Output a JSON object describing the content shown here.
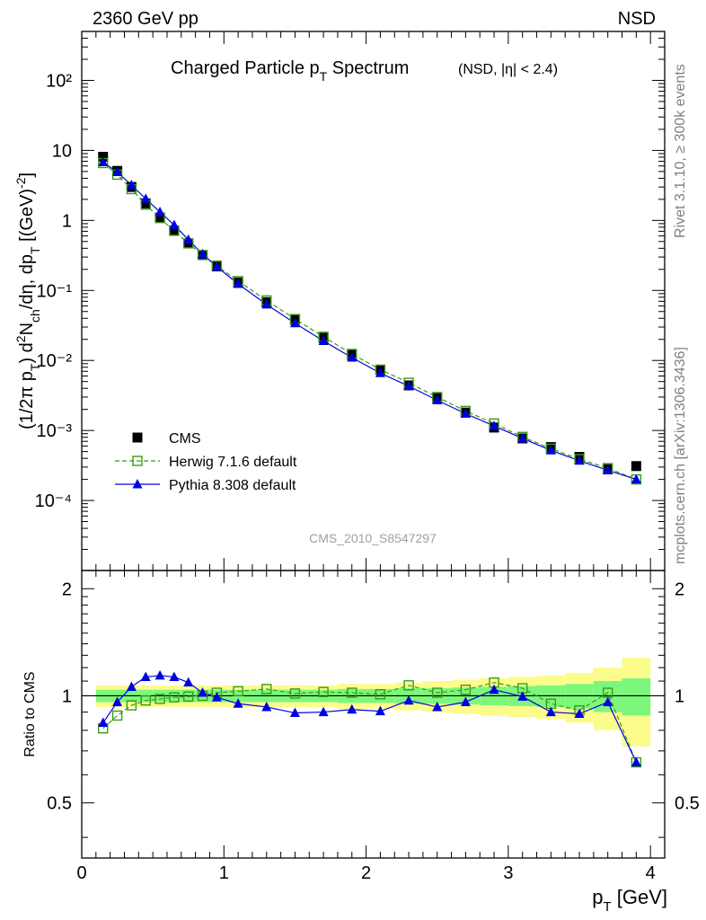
{
  "header": {
    "energy_label": "2360 GeV pp",
    "process_label": "NSD"
  },
  "side_labels": {
    "rivet": "Rivet 3.1.10, ≥ 300k events",
    "source": "mcplots.cern.ch [arXiv:1306.3436]"
  },
  "watermark": "CMS_2010_S8547297",
  "colors": {
    "data": "#000000",
    "herwig": "#3a9a1a",
    "pythia": "#0000e0",
    "band_inner": "#7cf77c",
    "band_outer": "#fcfc8c"
  },
  "chart_data": [
    {
      "type": "scatter",
      "title_main": "Charged Particle p",
      "title_sub": "T",
      "title_main2": " Spectrum",
      "title_note": "(NSD, |η| < 2.4)",
      "yscale": "log",
      "xlim": [
        0,
        4.1
      ],
      "ylim": [
        1e-05,
        500
      ],
      "ylabel": "(1/2π p_T) d²N_ch/dη, dp_T [(GeV)⁻²]",
      "x": [
        0.15,
        0.25,
        0.35,
        0.45,
        0.55,
        0.65,
        0.75,
        0.85,
        0.95,
        1.1,
        1.3,
        1.5,
        1.7,
        1.9,
        2.1,
        2.3,
        2.5,
        2.7,
        2.9,
        3.1,
        3.3,
        3.5,
        3.7,
        3.9
      ],
      "series": [
        {
          "name": "CMS",
          "marker": "filled-square",
          "values": [
            8.1,
            5.1,
            3.0,
            1.75,
            1.1,
            0.72,
            0.47,
            0.32,
            0.22,
            0.13,
            0.068,
            0.038,
            0.021,
            0.012,
            0.0073,
            0.0044,
            0.0029,
            0.0018,
            0.0011,
            0.00077,
            0.00058,
            0.00042,
            0.00028,
            0.00031
          ]
        },
        {
          "name": "Herwig 7.1.6 default",
          "marker": "open-square",
          "values": [
            6.6,
            4.5,
            2.8,
            1.68,
            1.08,
            0.71,
            0.47,
            0.32,
            0.226,
            0.136,
            0.072,
            0.039,
            0.0218,
            0.0124,
            0.0074,
            0.0048,
            0.003,
            0.0019,
            0.00126,
            0.00081,
            0.00055,
            0.00039,
            0.00029,
            0.0002
          ]
        },
        {
          "name": "Pythia 8.308 default",
          "marker": "filled-triangle",
          "values": [
            6.8,
            4.9,
            3.2,
            2.03,
            1.32,
            0.86,
            0.53,
            0.33,
            0.218,
            0.124,
            0.063,
            0.034,
            0.019,
            0.011,
            0.0066,
            0.0043,
            0.0027,
            0.00174,
            0.00116,
            0.00077,
            0.00052,
            0.00037,
            0.00027,
            0.0002
          ]
        }
      ],
      "legend": [
        "CMS",
        "Herwig 7.1.6 default",
        "Pythia 8.308 default"
      ],
      "legend_placement": "lower-left",
      "y_ticks": [
        "10⁻⁴",
        "10⁻³",
        "10⁻²",
        "10⁻¹",
        "1",
        "10",
        "10²"
      ]
    },
    {
      "type": "line",
      "ylabel": "Ratio to CMS",
      "xlabel": "p_T [GeV]",
      "xlim": [
        0,
        4.1
      ],
      "ylim": [
        0.35,
        2.25
      ],
      "x_ticks": [
        "0",
        "1",
        "2",
        "3",
        "4"
      ],
      "y_ticks": [
        "0.5",
        "1",
        "2"
      ],
      "bins": [
        [
          0.1,
          0.2
        ],
        [
          0.2,
          0.3
        ],
        [
          0.3,
          0.4
        ],
        [
          0.4,
          0.5
        ],
        [
          0.5,
          0.6
        ],
        [
          0.6,
          0.7
        ],
        [
          0.7,
          0.8
        ],
        [
          0.8,
          0.9
        ],
        [
          0.9,
          1.0
        ],
        [
          1.0,
          1.2
        ],
        [
          1.2,
          1.4
        ],
        [
          1.4,
          1.6
        ],
        [
          1.6,
          1.8
        ],
        [
          1.8,
          2.0
        ],
        [
          2.0,
          2.2
        ],
        [
          2.2,
          2.4
        ],
        [
          2.4,
          2.6
        ],
        [
          2.6,
          2.8
        ],
        [
          2.8,
          3.0
        ],
        [
          3.0,
          3.2
        ],
        [
          3.2,
          3.4
        ],
        [
          3.4,
          3.6
        ],
        [
          3.6,
          3.8
        ],
        [
          3.8,
          4.0
        ]
      ],
      "band_inner": [
        0.04,
        0.04,
        0.04,
        0.04,
        0.04,
        0.04,
        0.04,
        0.04,
        0.04,
        0.04,
        0.04,
        0.04,
        0.04,
        0.045,
        0.045,
        0.05,
        0.05,
        0.055,
        0.06,
        0.065,
        0.07,
        0.08,
        0.1,
        0.12
      ],
      "band_outer": [
        0.07,
        0.07,
        0.07,
        0.07,
        0.07,
        0.07,
        0.07,
        0.07,
        0.07,
        0.07,
        0.07,
        0.07,
        0.07,
        0.08,
        0.08,
        0.09,
        0.1,
        0.11,
        0.12,
        0.13,
        0.14,
        0.16,
        0.2,
        0.28
      ],
      "x": [
        0.15,
        0.25,
        0.35,
        0.45,
        0.55,
        0.65,
        0.75,
        0.85,
        0.95,
        1.1,
        1.3,
        1.5,
        1.7,
        1.9,
        2.1,
        2.3,
        2.5,
        2.7,
        2.9,
        3.1,
        3.3,
        3.5,
        3.7,
        3.9
      ],
      "series": [
        {
          "name": "Herwig 7.1.6 default",
          "values": [
            0.81,
            0.88,
            0.94,
            0.97,
            0.98,
            0.99,
            0.995,
            1.0,
            1.02,
            1.03,
            1.045,
            1.015,
            1.025,
            1.02,
            1.01,
            1.07,
            1.02,
            1.04,
            1.09,
            1.05,
            0.95,
            0.91,
            1.02,
            0.65
          ]
        },
        {
          "name": "Pythia 8.308 default",
          "values": [
            0.84,
            0.96,
            1.06,
            1.13,
            1.14,
            1.13,
            1.09,
            1.02,
            0.99,
            0.95,
            0.93,
            0.895,
            0.9,
            0.915,
            0.905,
            0.97,
            0.93,
            0.96,
            1.04,
            0.995,
            0.9,
            0.89,
            0.96,
            0.65
          ]
        }
      ]
    }
  ]
}
